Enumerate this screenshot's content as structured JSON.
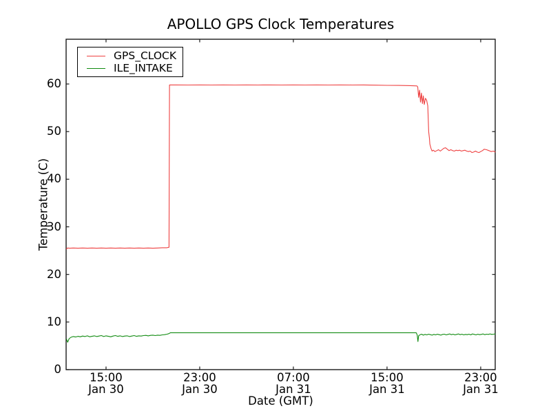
{
  "figure": {
    "background": "#ffffff",
    "frame_color": "#1a1a1a"
  },
  "chart_data": {
    "type": "line",
    "title": "APOLLO GPS Clock Temperatures",
    "xlabel": "Date (GMT)",
    "ylabel": "Temperature (C)",
    "grid": false,
    "legend_position": "upper left",
    "x_unit": "hours since Jan 30 00:00 GMT",
    "xlim": [
      11.59,
      48.24
    ],
    "ylim": [
      0,
      69.4
    ],
    "x_ticks": [
      {
        "h": 15,
        "time": "15:00",
        "date": "Jan 30"
      },
      {
        "h": 23,
        "time": "23:00",
        "date": "Jan 30"
      },
      {
        "h": 31,
        "time": "07:00",
        "date": "Jan 31"
      },
      {
        "h": 39,
        "time": "15:00",
        "date": "Jan 31"
      },
      {
        "h": 47,
        "time": "23:00",
        "date": "Jan 31"
      }
    ],
    "y_ticks": [
      {
        "v": 0,
        "label": "0"
      },
      {
        "v": 10,
        "label": "10"
      },
      {
        "v": 20,
        "label": "20"
      },
      {
        "v": 30,
        "label": "30"
      },
      {
        "v": 40,
        "label": "40"
      },
      {
        "v": 50,
        "label": "50"
      },
      {
        "v": 60,
        "label": "60"
      }
    ],
    "series": [
      {
        "name": "GPS_CLOCK",
        "color": "#ee4040",
        "points": [
          [
            11.62,
            25.35
          ],
          [
            11.7,
            25.55
          ],
          [
            11.9,
            25.5
          ],
          [
            12.2,
            25.55
          ],
          [
            12.6,
            25.5
          ],
          [
            13.0,
            25.55
          ],
          [
            13.4,
            25.5
          ],
          [
            13.8,
            25.55
          ],
          [
            14.2,
            25.5
          ],
          [
            14.6,
            25.55
          ],
          [
            15.0,
            25.5
          ],
          [
            15.4,
            25.55
          ],
          [
            15.8,
            25.5
          ],
          [
            16.2,
            25.55
          ],
          [
            16.6,
            25.5
          ],
          [
            17.0,
            25.55
          ],
          [
            17.4,
            25.5
          ],
          [
            17.8,
            25.55
          ],
          [
            18.2,
            25.5
          ],
          [
            18.6,
            25.55
          ],
          [
            19.0,
            25.5
          ],
          [
            19.4,
            25.55
          ],
          [
            19.8,
            25.6
          ],
          [
            20.2,
            25.6
          ],
          [
            20.38,
            25.7
          ],
          [
            20.42,
            59.8
          ],
          [
            21.0,
            59.8
          ],
          [
            22.0,
            59.78
          ],
          [
            23.0,
            59.8
          ],
          [
            24.0,
            59.78
          ],
          [
            25.0,
            59.8
          ],
          [
            26.0,
            59.78
          ],
          [
            27.0,
            59.8
          ],
          [
            28.0,
            59.78
          ],
          [
            29.0,
            59.8
          ],
          [
            30.0,
            59.78
          ],
          [
            31.0,
            59.8
          ],
          [
            32.0,
            59.78
          ],
          [
            33.0,
            59.8
          ],
          [
            34.0,
            59.78
          ],
          [
            35.0,
            59.8
          ],
          [
            36.0,
            59.78
          ],
          [
            37.0,
            59.8
          ],
          [
            38.0,
            59.75
          ],
          [
            39.0,
            59.72
          ],
          [
            40.0,
            59.7
          ],
          [
            41.0,
            59.65
          ],
          [
            41.55,
            59.6
          ],
          [
            41.62,
            59.4
          ],
          [
            41.7,
            57.2
          ],
          [
            41.78,
            58.7
          ],
          [
            41.86,
            56.2
          ],
          [
            41.94,
            58.1
          ],
          [
            42.02,
            55.9
          ],
          [
            42.1,
            57.5
          ],
          [
            42.18,
            55.7
          ],
          [
            42.28,
            57.0
          ],
          [
            42.38,
            56.6
          ],
          [
            42.48,
            55.4
          ],
          [
            42.56,
            50.0
          ],
          [
            42.62,
            48.6
          ],
          [
            42.66,
            47.4
          ],
          [
            42.75,
            46.5
          ],
          [
            42.85,
            45.9
          ],
          [
            42.95,
            46.1
          ],
          [
            43.1,
            45.8
          ],
          [
            43.25,
            46.0
          ],
          [
            43.4,
            46.2
          ],
          [
            43.55,
            45.9
          ],
          [
            43.7,
            46.2
          ],
          [
            43.85,
            46.5
          ],
          [
            44.0,
            46.6
          ],
          [
            44.15,
            46.3
          ],
          [
            44.3,
            46.0
          ],
          [
            44.45,
            46.2
          ],
          [
            44.6,
            46.0
          ],
          [
            44.75,
            45.9
          ],
          [
            44.9,
            46.1
          ],
          [
            45.05,
            46.0
          ],
          [
            45.2,
            46.1
          ],
          [
            45.35,
            45.9
          ],
          [
            45.5,
            46.0
          ],
          [
            45.65,
            46.1
          ],
          [
            45.8,
            45.9
          ],
          [
            45.95,
            45.8
          ],
          [
            46.1,
            45.9
          ],
          [
            46.25,
            45.6
          ],
          [
            46.4,
            45.7
          ],
          [
            46.55,
            45.9
          ],
          [
            46.7,
            45.7
          ],
          [
            46.85,
            45.6
          ],
          [
            47.0,
            45.8
          ],
          [
            47.15,
            46.0
          ],
          [
            47.3,
            46.3
          ],
          [
            47.5,
            46.2
          ],
          [
            47.7,
            46.0
          ],
          [
            47.9,
            45.8
          ],
          [
            48.1,
            45.9
          ],
          [
            48.24,
            45.7
          ]
        ]
      },
      {
        "name": "ILE_INTAKE",
        "color": "#0f8a0f",
        "points": [
          [
            11.62,
            6.4
          ],
          [
            11.72,
            5.75
          ],
          [
            11.85,
            6.5
          ],
          [
            12.0,
            6.8
          ],
          [
            12.2,
            6.95
          ],
          [
            12.4,
            6.85
          ],
          [
            12.6,
            7.0
          ],
          [
            12.8,
            6.9
          ],
          [
            13.0,
            7.05
          ],
          [
            13.2,
            6.95
          ],
          [
            13.4,
            7.1
          ],
          [
            13.6,
            6.9
          ],
          [
            13.8,
            7.0
          ],
          [
            14.0,
            7.1
          ],
          [
            14.2,
            6.95
          ],
          [
            14.4,
            7.05
          ],
          [
            14.6,
            7.15
          ],
          [
            14.8,
            6.95
          ],
          [
            15.0,
            7.1
          ],
          [
            15.2,
            7.0
          ],
          [
            15.4,
            6.9
          ],
          [
            15.6,
            7.05
          ],
          [
            15.8,
            7.15
          ],
          [
            16.0,
            7.0
          ],
          [
            16.2,
            7.1
          ],
          [
            16.4,
            6.95
          ],
          [
            16.6,
            7.05
          ],
          [
            16.8,
            7.1
          ],
          [
            17.0,
            6.95
          ],
          [
            17.2,
            7.05
          ],
          [
            17.4,
            7.15
          ],
          [
            17.6,
            7.0
          ],
          [
            17.8,
            7.1
          ],
          [
            18.0,
            7.05
          ],
          [
            18.2,
            7.15
          ],
          [
            18.4,
            7.2
          ],
          [
            18.6,
            7.1
          ],
          [
            18.8,
            7.2
          ],
          [
            19.0,
            7.25
          ],
          [
            19.2,
            7.15
          ],
          [
            19.4,
            7.25
          ],
          [
            19.6,
            7.2
          ],
          [
            19.8,
            7.3
          ],
          [
            20.0,
            7.35
          ],
          [
            20.2,
            7.45
          ],
          [
            20.35,
            7.55
          ],
          [
            20.5,
            7.75
          ],
          [
            21.5,
            7.75
          ],
          [
            23,
            7.75
          ],
          [
            25,
            7.75
          ],
          [
            27,
            7.75
          ],
          [
            29,
            7.75
          ],
          [
            31,
            7.75
          ],
          [
            33,
            7.75
          ],
          [
            35,
            7.75
          ],
          [
            37,
            7.75
          ],
          [
            39,
            7.75
          ],
          [
            40.5,
            7.75
          ],
          [
            41.5,
            7.75
          ],
          [
            41.58,
            7.25
          ],
          [
            41.64,
            5.9
          ],
          [
            41.7,
            7.1
          ],
          [
            41.8,
            7.3
          ],
          [
            41.95,
            7.45
          ],
          [
            42.1,
            7.25
          ],
          [
            42.25,
            7.4
          ],
          [
            42.4,
            7.3
          ],
          [
            42.55,
            7.45
          ],
          [
            42.7,
            7.35
          ],
          [
            42.85,
            7.25
          ],
          [
            43.0,
            7.4
          ],
          [
            43.15,
            7.3
          ],
          [
            43.3,
            7.45
          ],
          [
            43.45,
            7.35
          ],
          [
            43.6,
            7.25
          ],
          [
            43.75,
            7.4
          ],
          [
            43.9,
            7.45
          ],
          [
            44.05,
            7.3
          ],
          [
            44.2,
            7.4
          ],
          [
            44.35,
            7.5
          ],
          [
            44.5,
            7.35
          ],
          [
            44.65,
            7.45
          ],
          [
            44.8,
            7.3
          ],
          [
            44.95,
            7.4
          ],
          [
            45.1,
            7.5
          ],
          [
            45.25,
            7.35
          ],
          [
            45.4,
            7.45
          ],
          [
            45.55,
            7.3
          ],
          [
            45.7,
            7.4
          ],
          [
            45.85,
            7.35
          ],
          [
            46.0,
            7.45
          ],
          [
            46.15,
            7.3
          ],
          [
            46.3,
            7.5
          ],
          [
            46.45,
            7.4
          ],
          [
            46.6,
            7.3
          ],
          [
            46.75,
            7.45
          ],
          [
            46.9,
            7.35
          ],
          [
            47.05,
            7.4
          ],
          [
            47.2,
            7.5
          ],
          [
            47.35,
            7.35
          ],
          [
            47.5,
            7.45
          ],
          [
            47.65,
            7.4
          ],
          [
            47.8,
            7.5
          ],
          [
            47.95,
            7.4
          ],
          [
            48.1,
            7.45
          ],
          [
            48.24,
            7.5
          ]
        ]
      }
    ]
  }
}
